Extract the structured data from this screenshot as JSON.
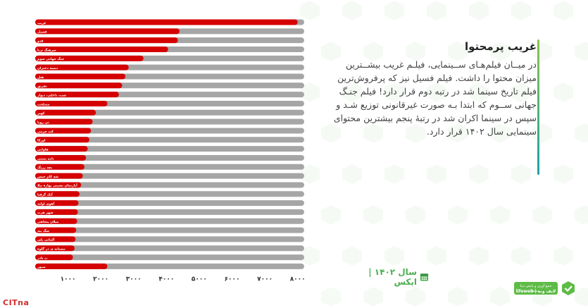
{
  "heading": "غریب پرمحتوا",
  "paragraph": "در میــان فیلم‌هـای ســینمایی، فیلـم غریب بیشــترین میزان محتوا را داشت. فیلم فسیل نیز که پرفروش‌ترین فیلم تاریخ سینما شد در رتبه دوم قرار دارد! فیلم جنـگ جهانی ســوم که ابتدا بـه صورت غیرقانونی توزیع شـد و سپس در سینما اکران شد در رتبهٔ پنجم بیشترین محتوای سینمایی سال ۱۴۰۲ قرار دارد.",
  "period_label": "سال ۱۴۰۲  |  ایکس",
  "logos": {
    "citna": "CITna",
    "fw_tagline": "جمع آوری و پایش دیتا توسط",
    "fw_name": "lifeweb | لایف وب"
  },
  "colors": {
    "bar": "#d50000",
    "track": "#a6a6a6",
    "accent_top": "#8bc34a",
    "accent_bottom": "#1fa2a8"
  },
  "icons": {
    "calendar": "calendar-icon",
    "logo": "shield-check-icon"
  },
  "chart_data": {
    "type": "bar",
    "orientation": "horizontal",
    "categories": [
      "غریب",
      "فسیل",
      "قدو",
      "سرهنگ ثریا",
      "جنگ جهانی سوم",
      "دسته دختران",
      "هتل",
      "تفریق",
      "شب، داخلی، دیوار",
      "مصلحت",
      "کهیر",
      "تی رویا",
      "کت چرمی",
      "اورکا",
      "هاوایی",
      "نامه پستی",
      "بچه زرنگ",
      "شه کام حیس",
      "آپارتمان نشینی بهاره نیلا",
      "آتک گرفتا",
      "آهوی اولند",
      "شهر هرت",
      "میلان پنجاهی",
      "سگ بند",
      "آلمانی یلی",
      "مستانه ی در گلوه",
      "ت تادر",
      "صبور"
    ],
    "values": [
      8000,
      4400,
      4350,
      4050,
      3300,
      2850,
      2750,
      2650,
      2550,
      2200,
      1850,
      1750,
      1700,
      1650,
      1600,
      1550,
      1500,
      1450,
      1400,
      1350,
      1320,
      1300,
      1280,
      1250,
      1230,
      1200,
      1150,
      2200
    ],
    "xticks": [
      "۱۰۰۰",
      "۲۰۰۰",
      "۳۰۰۰",
      "۴۰۰۰",
      "۵۰۰۰",
      "۶۰۰۰",
      "۷۰۰۰",
      "۸۰۰۰"
    ],
    "xlim": [
      0,
      8200
    ],
    "grid": false
  }
}
